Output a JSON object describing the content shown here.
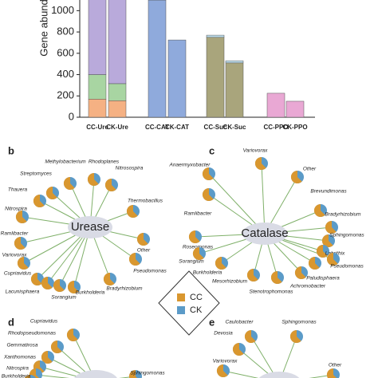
{
  "chart_data": {
    "type": "bar",
    "stacked": true,
    "y_label": "Gene abund",
    "categories": [
      "CC-Ure",
      "CK-Ure",
      "CC-CAT",
      "CK-CAT",
      "CC-Suc",
      "CK-Suc",
      "CC-PPO",
      "CK-PPO"
    ],
    "series": [
      {
        "color": "#f5b183",
        "values": [
          170,
          155,
          null,
          null,
          null,
          null,
          null,
          null
        ]
      },
      {
        "color": "#a8d5a2",
        "values": [
          230,
          160,
          null,
          null,
          null,
          null,
          null,
          null
        ]
      },
      {
        "color": "#b9aadb",
        "values": [
          750,
          835,
          null,
          null,
          null,
          null,
          null,
          null
        ]
      },
      {
        "color": "#8faadc",
        "values": [
          null,
          null,
          1100,
          725,
          null,
          null,
          null,
          null
        ]
      },
      {
        "color": "#4f6d9a",
        "values": [
          null,
          null,
          10,
          null,
          null,
          null,
          null,
          null
        ]
      },
      {
        "color": "#a9a57c",
        "values": [
          null,
          null,
          null,
          null,
          750,
          510,
          null,
          null
        ]
      },
      {
        "color": "#bfe0ef",
        "values": [
          null,
          null,
          null,
          null,
          20,
          20,
          null,
          null
        ]
      },
      {
        "color": "#e9a8d4",
        "values": [
          null,
          null,
          null,
          null,
          null,
          null,
          225,
          150
        ]
      }
    ],
    "ylim": [
      0,
      1100
    ],
    "yticks": [
      0,
      200,
      400,
      600,
      800,
      1000
    ]
  },
  "legend": [
    "CC",
    "CK"
  ],
  "panels": [
    {
      "label": "b",
      "center": "Urease",
      "leaves": [
        "Methylobacterium",
        "Rhodoplanes",
        "Nitrosospira",
        "Streptomyces",
        "Thauera",
        "Thermobacillus",
        "Nitrospira",
        "Ramlibacter",
        "Other",
        "Variovorax",
        "Pseudomonas",
        "Cupriavidus",
        "Lacunisphaera",
        "Sorangium",
        "Burkholderia",
        "Bradyrhizobium"
      ]
    },
    {
      "label": "c",
      "center": "Catalase",
      "leaves": [
        "Variovorax",
        "Anaermyxobacter",
        "Other",
        "Brevundimonas",
        "Ramlibacter",
        "Bradyrhizobium",
        "Sphingomonas",
        "Labrithix",
        "Roseomonas",
        "Pseudomonas",
        "Sorangium",
        "Paludisphaera",
        "Burkholderia",
        "Achromobacter",
        "Mesorhizobium",
        "Stenotrophomonas"
      ]
    },
    {
      "label": "d",
      "leaves": [
        "Cupriavidus",
        "Rhodopseudomonas",
        "Gemmatirosa",
        "Xanthomonas",
        "Nitrospira",
        "Burkholderia",
        "Sphingomonas"
      ]
    },
    {
      "label": "e",
      "leaves": [
        "Caulobacter",
        "Sphingomonas",
        "Devosia",
        "Variovorax",
        "Other"
      ]
    }
  ]
}
